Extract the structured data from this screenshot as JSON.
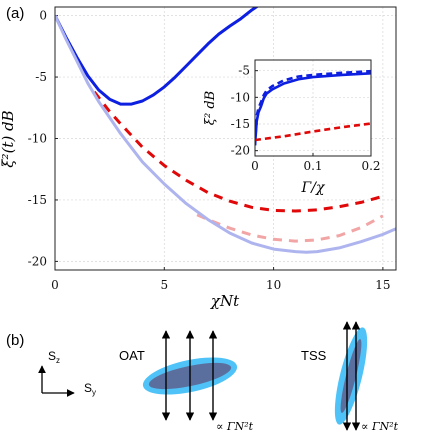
{
  "panel_a_label": "(a)",
  "panel_b_label": "(b)",
  "chart_data": [
    {
      "type": "line",
      "xlabel": "χNt",
      "ylabel": "ξ²(t) dB",
      "xlim": [
        0,
        15.6
      ],
      "ylim": [
        -20.7,
        0.7
      ],
      "xticks": [
        0,
        5,
        10,
        15
      ],
      "yticks": [
        0,
        -5,
        -10,
        -15,
        -20
      ],
      "grid": true,
      "series": [
        {
          "color": "#0d1fe0",
          "style": "solid",
          "x": [
            0,
            0.5,
            1,
            1.5,
            2,
            2.5,
            3,
            3.5,
            4,
            4.5,
            5,
            5.5,
            6,
            6.5,
            7,
            7.5,
            8,
            8.5,
            9,
            9.45
          ],
          "y": [
            0,
            -1.75,
            -3.4,
            -4.9,
            -6.05,
            -6.8,
            -7.2,
            -7.2,
            -6.95,
            -6.45,
            -5.8,
            -5.0,
            -4.1,
            -3.2,
            -2.3,
            -1.5,
            -0.85,
            -0.25,
            0.45,
            1.0
          ]
        },
        {
          "color": "#e00808",
          "style": "dashed",
          "x": [
            1.8,
            2.5,
            3,
            4,
            5,
            6,
            7,
            8,
            9,
            10,
            11,
            12,
            13,
            14,
            15
          ],
          "y": [
            -6.2,
            -7.8,
            -8.8,
            -10.7,
            -12.2,
            -13.4,
            -14.4,
            -15.1,
            -15.6,
            -15.85,
            -15.9,
            -15.8,
            -15.55,
            -15.2,
            -14.7
          ]
        },
        {
          "color": "#f2a5a5",
          "style": "dashed",
          "x": [
            6.5,
            7,
            8,
            9,
            10,
            11,
            12,
            13,
            14,
            15
          ],
          "y": [
            -16.2,
            -16.6,
            -17.3,
            -17.85,
            -18.2,
            -18.35,
            -18.25,
            -17.9,
            -17.25,
            -16.3
          ]
        },
        {
          "color": "#aeb4ee",
          "style": "solid",
          "x": [
            0,
            0.5,
            1,
            1.5,
            2,
            3,
            4,
            5,
            6,
            7,
            8,
            9,
            10,
            11,
            11.5,
            12,
            13,
            14,
            15,
            15.6
          ],
          "y": [
            0,
            -1.9,
            -3.7,
            -5.5,
            -7.0,
            -9.6,
            -11.9,
            -13.7,
            -15.3,
            -16.6,
            -17.7,
            -18.5,
            -19.0,
            -19.2,
            -19.25,
            -19.2,
            -18.9,
            -18.4,
            -17.8,
            -17.35
          ]
        }
      ]
    },
    {
      "type": "line",
      "xlabel": "Γ/χ",
      "ylabel": "ξ² dB",
      "xlim": [
        0,
        0.2
      ],
      "ylim": [
        -21,
        -3
      ],
      "xticks": [
        0,
        0.1,
        0.2
      ],
      "yticks": [
        -5,
        -10,
        -15,
        -20
      ],
      "grid": true,
      "series": [
        {
          "color": "#0d1fe0",
          "style": "solid",
          "x": [
            0.0,
            0.003,
            0.006,
            0.01,
            0.015,
            0.02,
            0.03,
            0.05,
            0.075,
            0.1,
            0.15,
            0.2
          ],
          "y": [
            -19,
            -14.5,
            -12.8,
            -11.8,
            -10.2,
            -9.3,
            -8.5,
            -7.4,
            -6.6,
            -6.2,
            -5.8,
            -5.5
          ]
        },
        {
          "color": "#0d1fe0",
          "style": "dashed",
          "x": [
            0.0,
            0.003,
            0.006,
            0.01,
            0.015,
            0.02,
            0.03,
            0.05,
            0.075,
            0.1,
            0.15,
            0.2
          ],
          "y": [
            -19,
            -13.5,
            -12.0,
            -11.0,
            -9.6,
            -8.7,
            -7.9,
            -6.8,
            -6.1,
            -5.8,
            -5.4,
            -5.1
          ]
        },
        {
          "color": "#e00808",
          "style": "dashed",
          "x": [
            0.0,
            0.05,
            0.1,
            0.15,
            0.2
          ],
          "y": [
            -18.0,
            -17.3,
            -16.4,
            -15.6,
            -14.9
          ]
        }
      ]
    }
  ],
  "schematic": {
    "axis_sz": "S",
    "axis_sz_sub": "z",
    "axis_sy": "S",
    "axis_sy_sub": "y",
    "oat_label": "OAT",
    "tss_label": "TSS",
    "prop_label_oat": "∝ ΓN²t",
    "prop_label_tss": "∝ ΓN²t",
    "ellipse_outer_color": "#4fc3f7",
    "ellipse_inner_color": "#5a6f9e"
  }
}
